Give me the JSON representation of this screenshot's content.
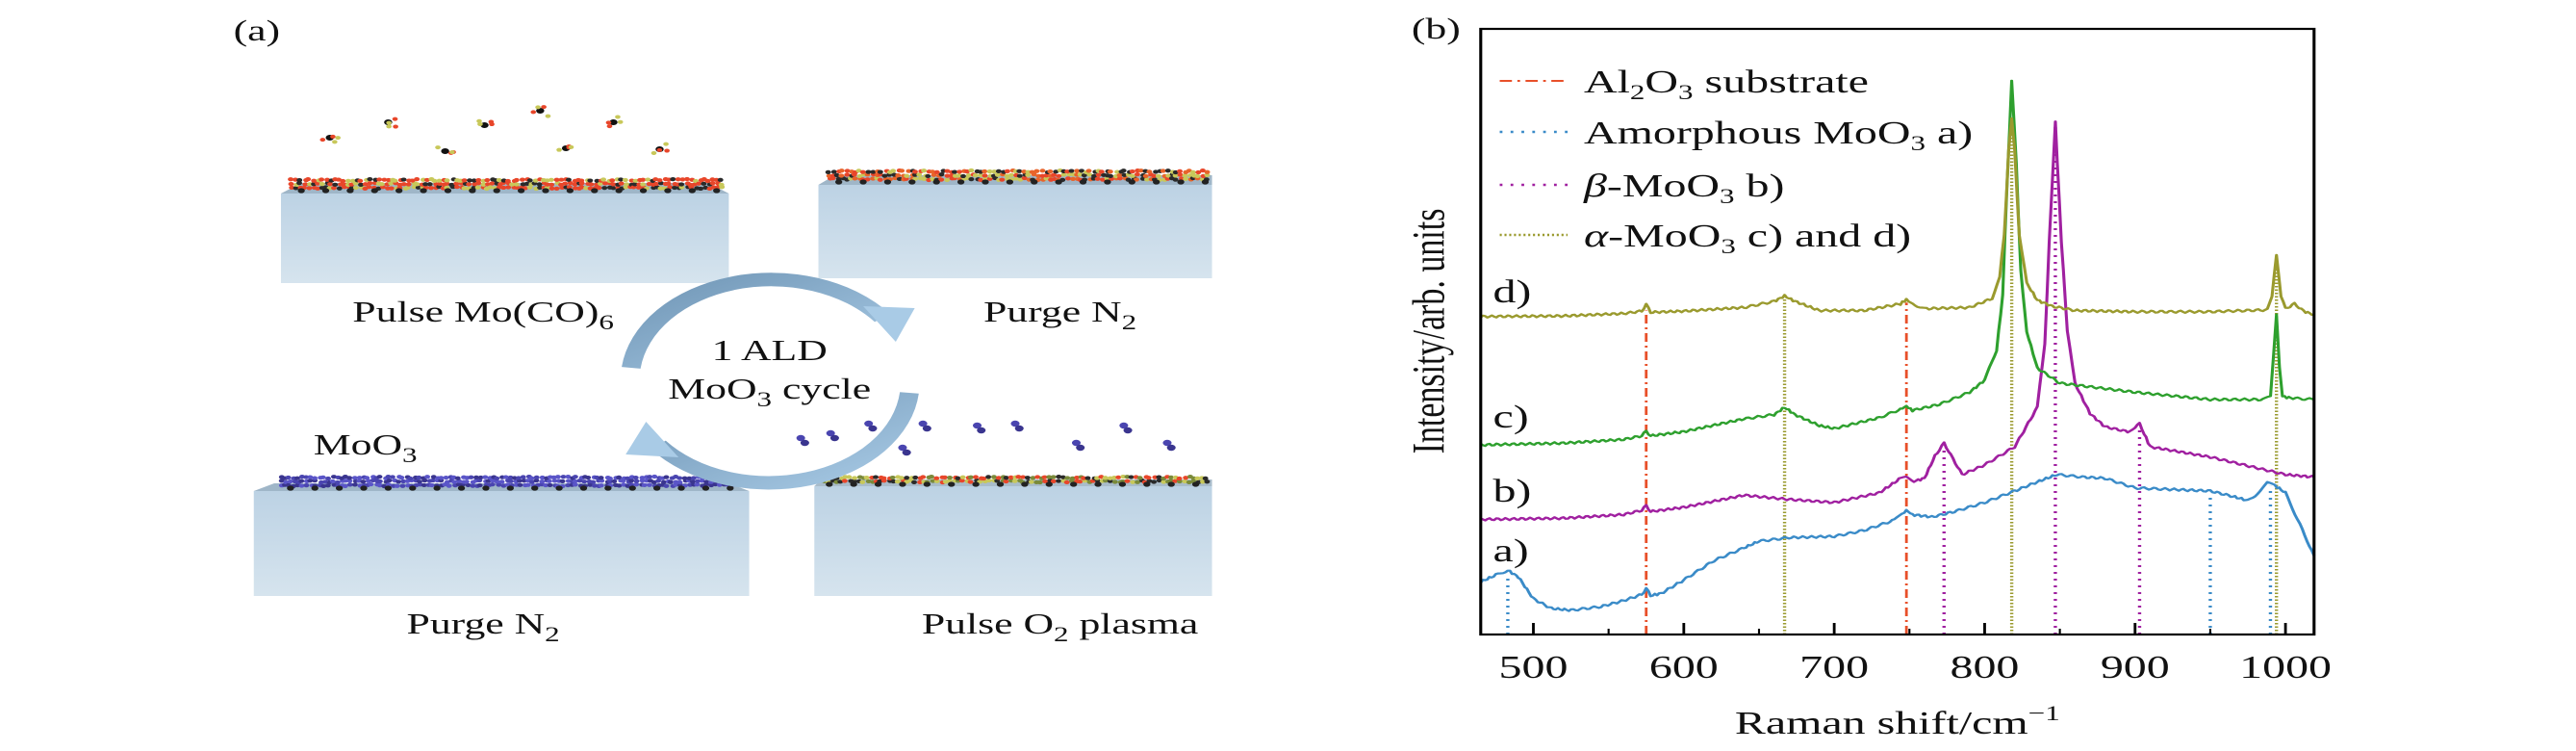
{
  "panel_a": {
    "label": "(a)",
    "steps": {
      "pulse_mo": {
        "text": "Pulse Mo(CO)",
        "sub": "6"
      },
      "purge_top": {
        "text": "Purge N",
        "sub": "2"
      },
      "purge_bottom": {
        "text": "Purge N",
        "sub": "2"
      },
      "pulse_o2": {
        "text": "Pulse O",
        "sub": "2",
        "rest": " plasma"
      }
    },
    "cycle": {
      "line1": "1 ALD",
      "line2_a": "MoO",
      "line2_sub": "3",
      "line2_b": " cycle"
    },
    "film_label": {
      "text": "MoO",
      "sub": "3"
    },
    "colors": {
      "substrate": "#c9dbe8",
      "arrow": "#8fb8da",
      "film": "#4a45b0"
    }
  },
  "chart_data": {
    "type": "line",
    "panel_label": "(b)",
    "xlabel": {
      "text": "Raman shift/cm",
      "sup": "−1"
    },
    "ylabel": "Intensity/arb. units",
    "xlim": [
      465,
      1019
    ],
    "ylim": [
      0,
      100
    ],
    "xticks": [
      "500",
      "600",
      "700",
      "800",
      "900",
      "1000"
    ],
    "xtick_values": [
      500,
      600,
      700,
      800,
      900,
      1000
    ],
    "minor_xticks": [
      550,
      650,
      750,
      850,
      950
    ],
    "grid": false,
    "legend_position": "top-left",
    "legend": [
      {
        "parts": [
          "Al",
          "2",
          "O",
          "3",
          " substrate"
        ],
        "color": "#e8502a",
        "style": "dashdot"
      },
      {
        "parts": [
          "Amorphous MoO",
          "3",
          " a)"
        ],
        "color": "#3a8bc8",
        "style": "dotted"
      },
      {
        "parts": [
          "β",
          "-MoO",
          "3",
          " b)"
        ],
        "color": "#a020a0",
        "style": "dotted"
      },
      {
        "parts": [
          "α",
          "-MoO",
          "3",
          " c) and d)"
        ],
        "color": "#9a9a2e",
        "style": "dotted"
      }
    ],
    "series": [
      {
        "name": "a)",
        "color": "#3a8bc8",
        "x": [
          465,
          475,
          483,
          490,
          500,
          512,
          525,
          545,
          560,
          572,
          575,
          578,
          585,
          600,
          620,
          640,
          650,
          670,
          700,
          720,
          740,
          745,
          748,
          752,
          765,
          780,
          800,
          820,
          835,
          848,
          865,
          880,
          900,
          920,
          950,
          965,
          975,
          983,
          988,
          993,
          1000,
          1008,
          1019
        ],
        "y": [
          8.7,
          9.8,
          10.6,
          9.5,
          5.9,
          4.3,
          4.0,
          4.6,
          5.6,
          6.6,
          7.6,
          6.4,
          6.8,
          9.0,
          12.2,
          14.3,
          15.4,
          16.0,
          16.2,
          17.2,
          18.9,
          20.0,
          20.5,
          19.8,
          19.4,
          20.3,
          21.8,
          23.7,
          25.2,
          26.4,
          26.0,
          25.8,
          24.2,
          24.0,
          23.7,
          22.8,
          22.1,
          23.6,
          25.0,
          24.6,
          23.4,
          19.0,
          13.0
        ]
      },
      {
        "name": "b)",
        "color": "#a020a0",
        "x": [
          465,
          520,
          560,
          572,
          575,
          578,
          600,
          640,
          670,
          700,
          730,
          743,
          748,
          753,
          760,
          767,
          773,
          779,
          785,
          800,
          820,
          835,
          840,
          843,
          847,
          851,
          855,
          860,
          870,
          880,
          895,
          900,
          903,
          906,
          910,
          950,
          1000,
          1019
        ],
        "y": [
          19.0,
          19.2,
          19.8,
          20.5,
          21.3,
          20.3,
          21.0,
          23.0,
          22.3,
          21.8,
          23.4,
          25.6,
          26.0,
          25.3,
          25.8,
          29.5,
          31.6,
          29.0,
          26.4,
          28.0,
          31.0,
          37.5,
          48.0,
          65.0,
          84.6,
          65.0,
          50.0,
          41.5,
          36.5,
          34.3,
          33.5,
          34.3,
          34.8,
          33.2,
          31.0,
          29.3,
          26.4,
          26.0
        ]
      },
      {
        "name": "c)",
        "color": "#2ea02e",
        "x": [
          465,
          520,
          560,
          572,
          575,
          578,
          600,
          640,
          660,
          667,
          674,
          690,
          700,
          730,
          744,
          748,
          752,
          770,
          790,
          800,
          808,
          812,
          815,
          818,
          821,
          824,
          828,
          835,
          850,
          900,
          950,
          985,
          990,
          992,
          994,
          996,
          998,
          1005,
          1019
        ],
        "y": [
          31.3,
          31.6,
          32.2,
          32.8,
          33.6,
          32.8,
          33.5,
          35.6,
          36.3,
          37.5,
          36.3,
          34.5,
          34.0,
          35.8,
          37.2,
          37.7,
          37.0,
          38.0,
          40.0,
          42.0,
          47.0,
          56.0,
          75.0,
          91.3,
          78.0,
          60.0,
          50.0,
          44.0,
          41.5,
          40.0,
          38.8,
          38.8,
          39.2,
          46.0,
          53.0,
          44.0,
          39.3,
          39.0,
          38.8
        ]
      },
      {
        "name": "d)",
        "color": "#9a9a2e",
        "x": [
          465,
          520,
          560,
          572,
          575,
          578,
          600,
          640,
          660,
          667,
          674,
          690,
          720,
          744,
          748,
          752,
          760,
          790,
          805,
          810,
          813,
          816,
          818,
          820,
          823,
          828,
          835,
          845,
          860,
          900,
          950,
          988,
          991,
          994,
          997,
          1000,
          1006,
          1012,
          1019
        ],
        "y": [
          52.5,
          52.6,
          53.0,
          53.4,
          54.5,
          53.2,
          53.4,
          54.0,
          55.0,
          55.9,
          55.0,
          53.5,
          53.5,
          54.6,
          55.3,
          54.6,
          53.8,
          54.0,
          55.5,
          59.0,
          66.0,
          80.0,
          85.4,
          80.0,
          66.0,
          58.0,
          55.2,
          54.2,
          53.5,
          53.3,
          53.3,
          53.6,
          56.0,
          62.5,
          56.0,
          53.8,
          54.6,
          53.4,
          52.8
        ]
      }
    ],
    "reference_lines": [
      {
        "group": "Al2O3 substrate",
        "color": "#e8502a",
        "style": "dashdot",
        "x": [
          575,
          748
        ],
        "top": [
          53.5,
          54.8
        ]
      },
      {
        "group": "Amorphous MoO3",
        "color": "#3a8bc8",
        "style": "dotted",
        "x": [
          483,
          950,
          990
        ],
        "top": [
          9.5,
          23.2,
          24.5
        ]
      },
      {
        "group": "beta-MoO3",
        "color": "#a020a0",
        "style": "dotted",
        "x": [
          773,
          847,
          903
        ],
        "top": [
          30.8,
          84.0,
          34.0
        ]
      },
      {
        "group": "alpha-MoO3",
        "color": "#9a9a2e",
        "style": "dotted",
        "x": [
          667,
          818,
          994
        ],
        "top": [
          55.5,
          85.0,
          62.0
        ]
      }
    ],
    "curve_labels": [
      "a)",
      "b)",
      "c)",
      "d)"
    ]
  }
}
